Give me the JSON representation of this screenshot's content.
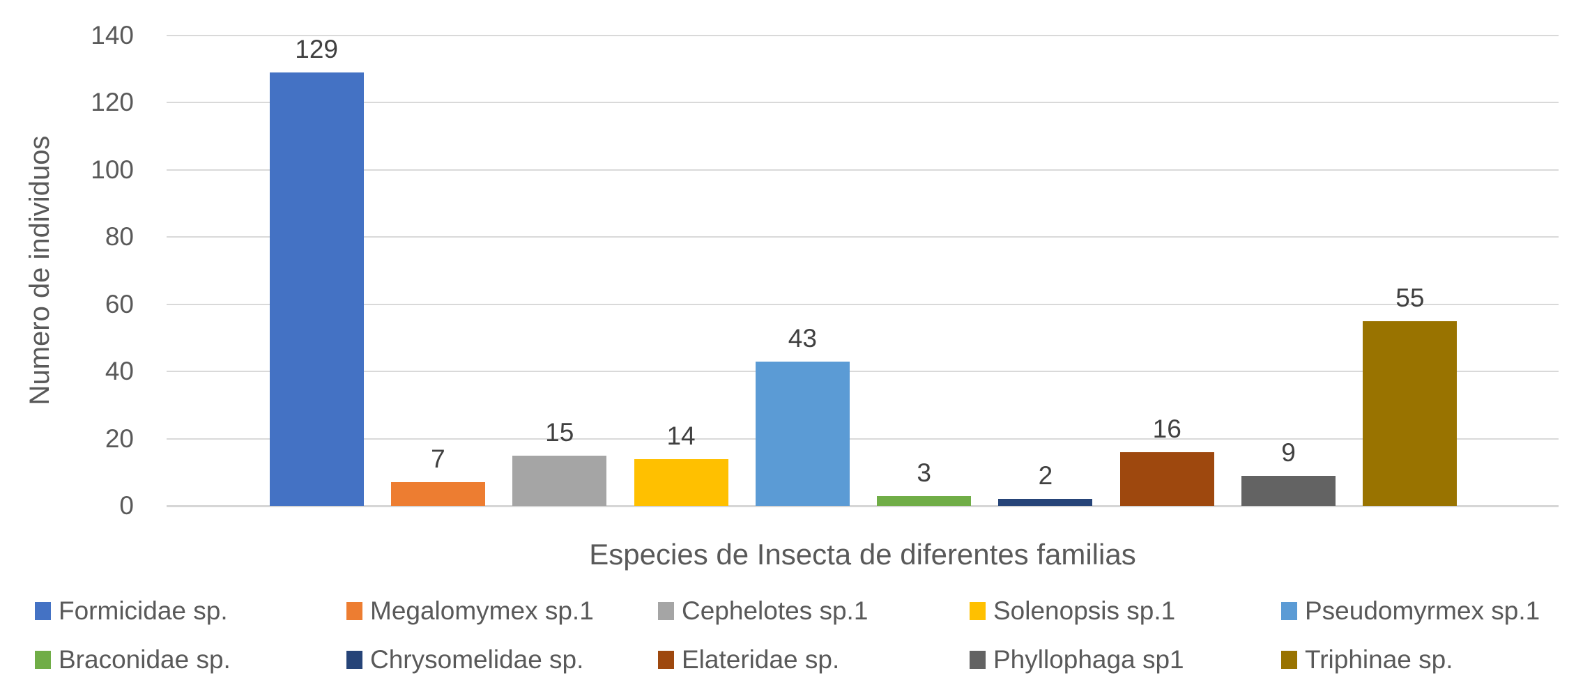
{
  "chart_data": {
    "type": "bar",
    "title": "",
    "xlabel": "Especies de Insecta de diferentes familias",
    "ylabel": "Numero de individuos",
    "ylim": [
      0,
      140
    ],
    "yticks": [
      0,
      20,
      40,
      60,
      80,
      100,
      120,
      140
    ],
    "grid": true,
    "data_labels": true,
    "legend_position": "bottom",
    "categories": [
      "Formicidae sp.",
      "Megalomymex sp.1",
      "Cephelotes sp.1",
      "Solenopsis sp.1",
      "Pseudomyrmex sp.1",
      "Braconidae sp.",
      "Chrysomelidae sp.",
      "Elateridae sp.",
      "Phyllophaga sp1",
      "Triphinae sp."
    ],
    "values": [
      129,
      7,
      15,
      14,
      43,
      3,
      2,
      16,
      9,
      55
    ],
    "colors": [
      "#4472C4",
      "#ED7D31",
      "#A5A5A5",
      "#FFC000",
      "#5B9BD5",
      "#70AD47",
      "#264478",
      "#9E480E",
      "#636363",
      "#997300"
    ]
  },
  "style_colors": {
    "gridline": "#D9D9D9",
    "axis_text": "#595959",
    "data_label_text": "#404040"
  }
}
